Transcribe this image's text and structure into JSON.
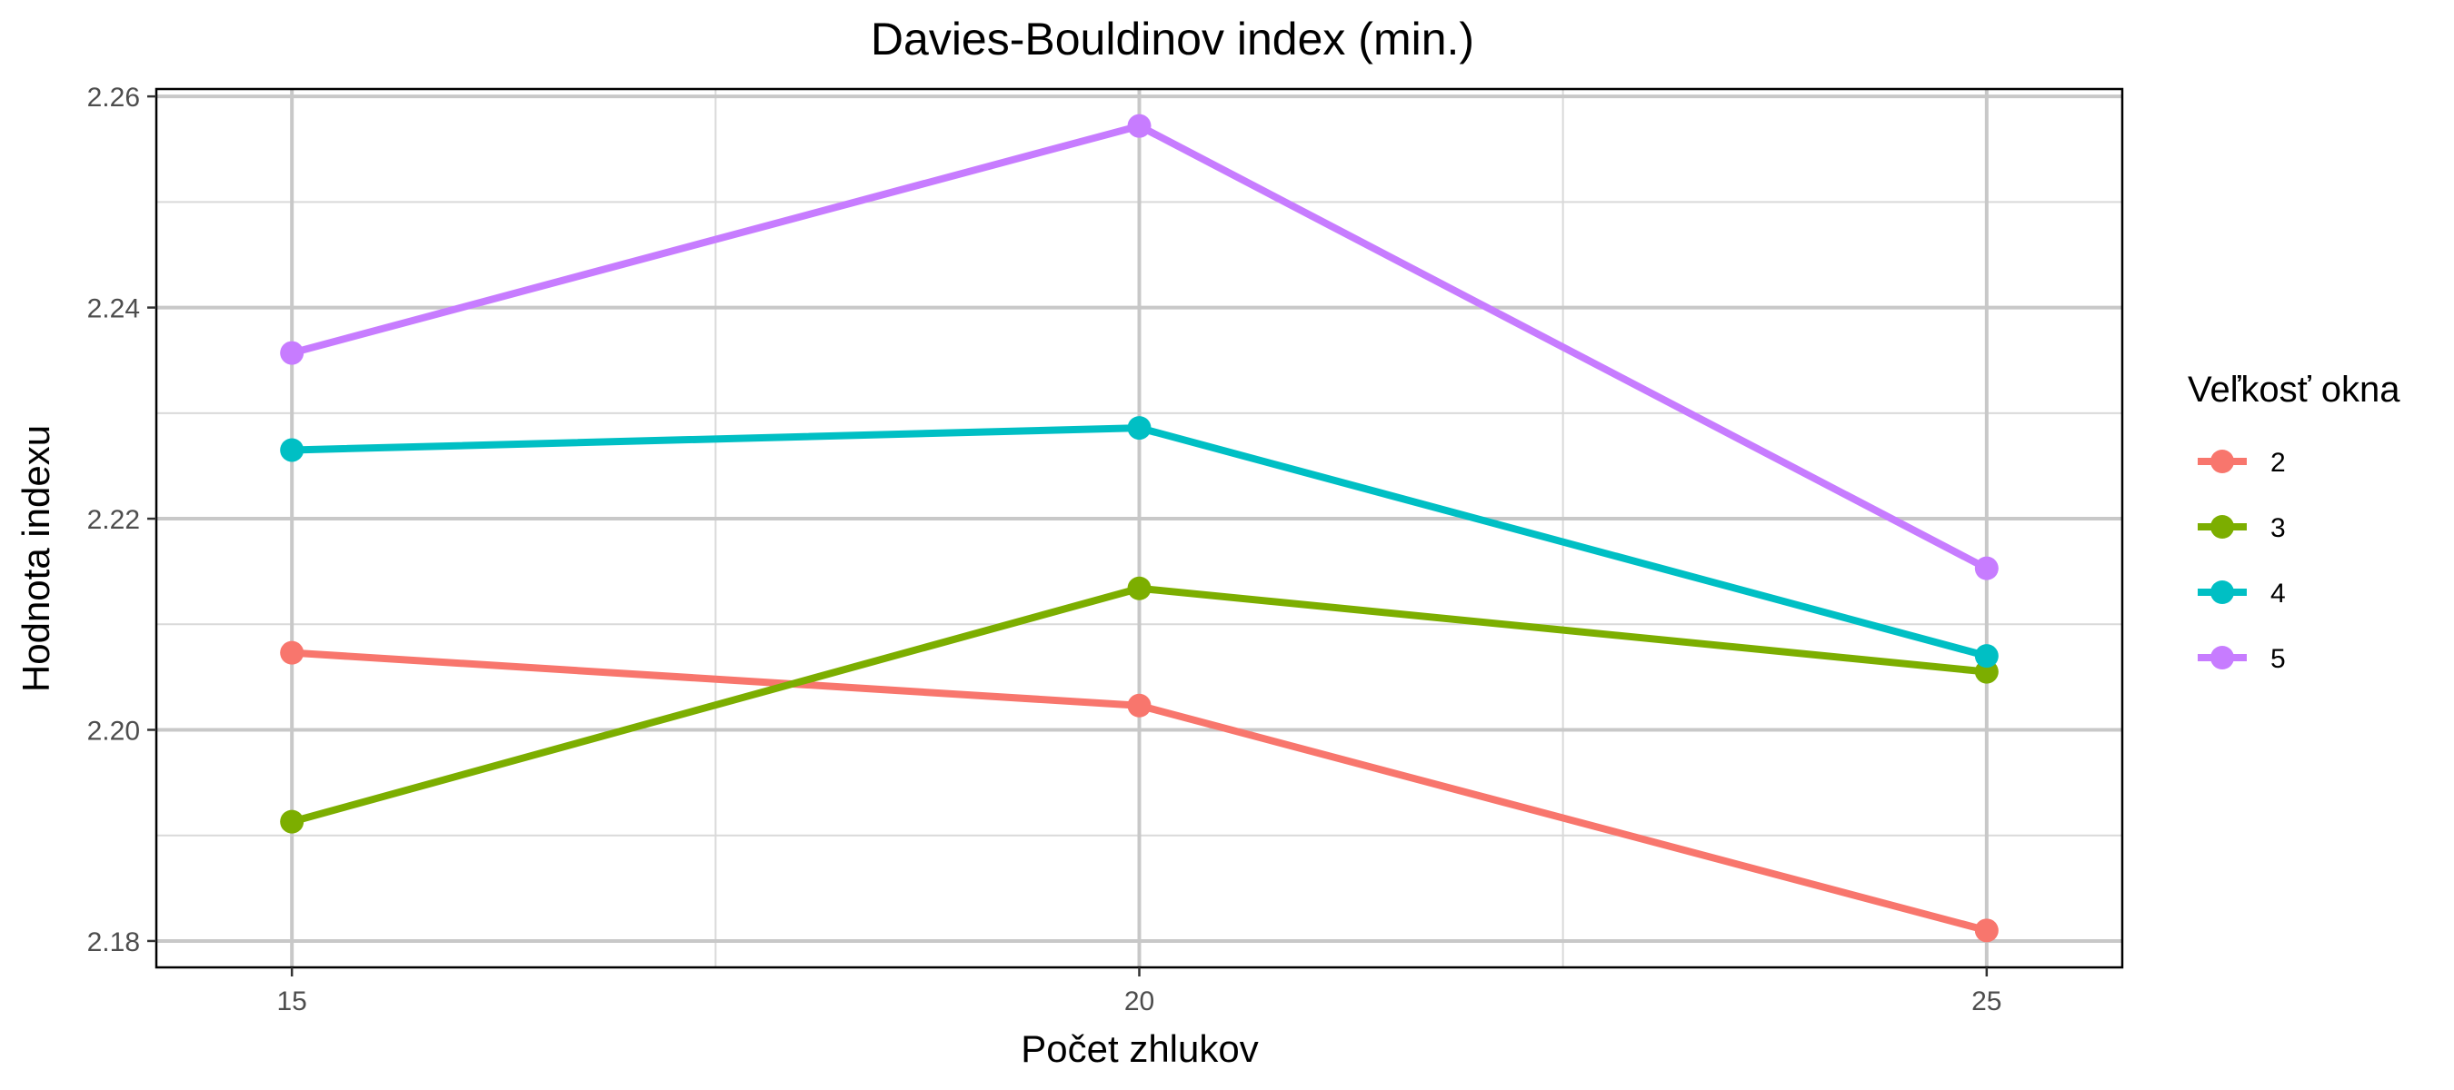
{
  "chart_data": {
    "type": "line",
    "title": "Davies-Bouldinov index (min.)",
    "xlabel": "Počet zhlukov",
    "ylabel": "Hodnota indexu",
    "x": [
      15,
      20,
      25
    ],
    "x_ticks": [
      "15",
      "20",
      "25"
    ],
    "xlim": [
      14.2,
      25.8
    ],
    "y_ticks": [
      "2.18",
      "2.20",
      "2.22",
      "2.24",
      "2.26"
    ],
    "ylim": [
      2.1775,
      2.2607
    ],
    "grid": true,
    "legend": {
      "title": "Veľkosť okna",
      "placement": "right"
    },
    "series": [
      {
        "name": "2",
        "color": "#F8766D",
        "values": [
          2.2073,
          2.2023,
          2.181
        ]
      },
      {
        "name": "3",
        "color": "#7CAE00",
        "values": [
          2.1913,
          2.2134,
          2.2055
        ]
      },
      {
        "name": "4",
        "color": "#00BFC4",
        "values": [
          2.2265,
          2.2286,
          2.207
        ]
      },
      {
        "name": "5",
        "color": "#C77CFF",
        "values": [
          2.2357,
          2.2572,
          2.2153
        ]
      }
    ]
  }
}
